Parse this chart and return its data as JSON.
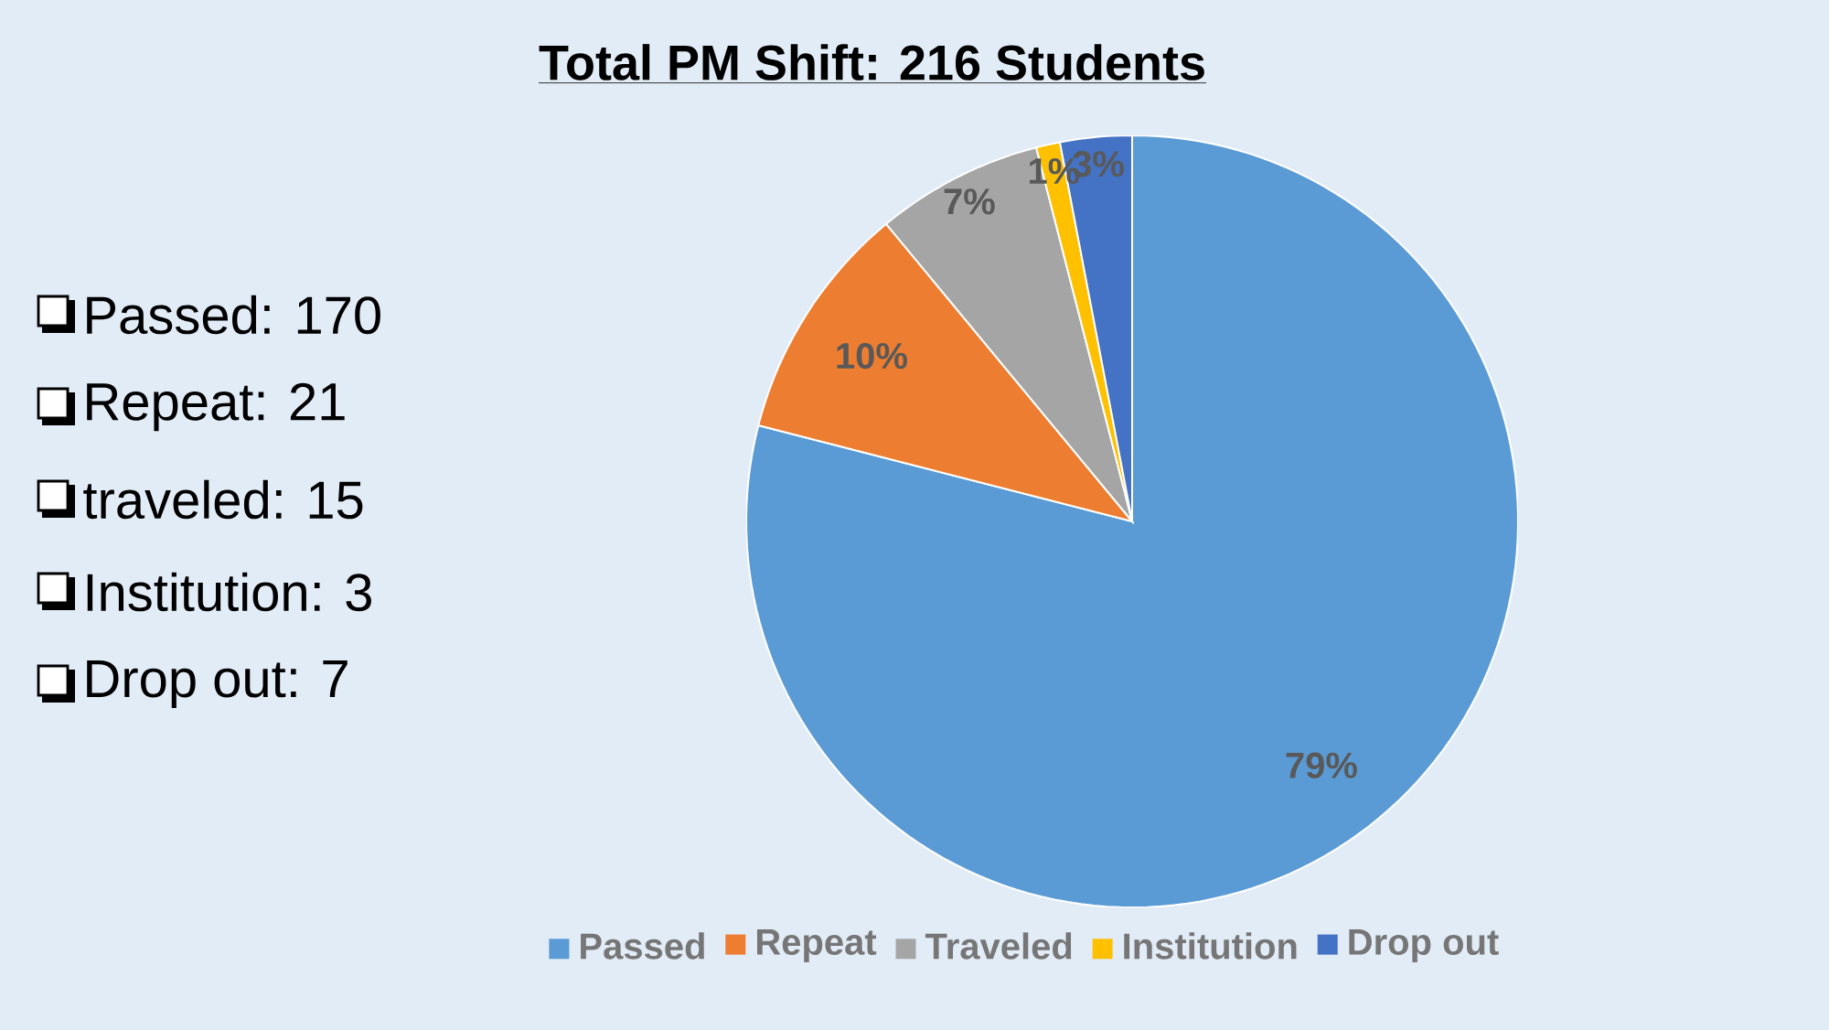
{
  "chart_data": {
    "type": "pie",
    "title": "Total PM Shift: 216 Students",
    "categories": [
      "Passed",
      "Repeat",
      "Traveled",
      "Institution",
      "Drop out"
    ],
    "values": [
      79,
      10,
      7,
      1,
      3
    ],
    "value_labels": [
      "79%",
      "10%",
      "7%",
      "1%",
      "3%"
    ],
    "colors": [
      "#5b9bd5",
      "#ed7d31",
      "#a5a5a5",
      "#ffc000",
      "#4472c4"
    ],
    "legend": "bottom",
    "annotations": [
      "Passed: 170",
      "Repeat: 21",
      "traveled: 15",
      "Institution: 3",
      "Drop out: 7"
    ]
  }
}
